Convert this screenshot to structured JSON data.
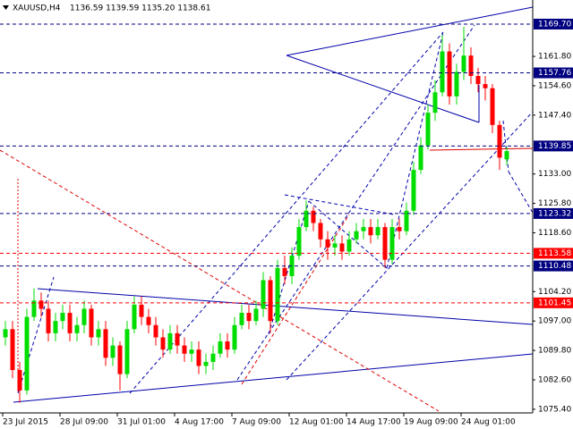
{
  "chart_data": {
    "type": "candlestick",
    "title": "XAUUSD,H4",
    "quote": "1136.59 1139.59 1135.20 1138.61",
    "up_color": "#00dd00",
    "down_color": "#ff0000",
    "ylim": [
      1074.5,
      1175.6
    ],
    "yticks": [
      {
        "value": 1075.4,
        "label": "1075.40"
      },
      {
        "value": 1082.6,
        "label": "1082.60"
      },
      {
        "value": 1089.8,
        "label": "1089.80"
      },
      {
        "value": 1097,
        "label": "1097.00"
      },
      {
        "value": 1104.2,
        "label": "1104.20"
      },
      {
        "value": 1118.6,
        "label": "1118.60"
      },
      {
        "value": 1125.8,
        "label": "1125.80"
      },
      {
        "value": 1133,
        "label": "1133.00"
      },
      {
        "value": 1147.4,
        "label": "1147.40"
      },
      {
        "value": 1154.6,
        "label": "1154.60"
      },
      {
        "value": 1161.8,
        "label": "1161.80"
      }
    ],
    "levels": [
      {
        "value": 1169.7,
        "label": "1169.70",
        "color": "#000080"
      },
      {
        "value": 1157.76,
        "label": "1157.76",
        "color": "#000080"
      },
      {
        "value": 1139.85,
        "label": "1139.85",
        "color": "#000080"
      },
      {
        "value": 1123.32,
        "label": "1123.32",
        "color": "#000080"
      },
      {
        "value": 1113.58,
        "label": "1113.58",
        "color": "#ff0000"
      },
      {
        "value": 1110.48,
        "label": "1110.48",
        "color": "#000080"
      },
      {
        "value": 1101.45,
        "label": "1101.45",
        "color": "#ff0000"
      }
    ],
    "xticks": [
      {
        "value": -0.375,
        "label": "23 Jul 2015"
      },
      {
        "value": 7.625,
        "label": "28 Jul 09:00"
      },
      {
        "value": 15.625,
        "label": "31 Jul 01:00"
      },
      {
        "value": 23.625,
        "label": "4 Aug 17:00"
      },
      {
        "value": 31.625,
        "label": "7 Aug 09:00"
      },
      {
        "value": 39.625,
        "label": "12 Aug 01:00"
      },
      {
        "value": 47.625,
        "label": "14 Aug 17:00"
      },
      {
        "value": 55.625,
        "label": "19 Aug 09:00"
      },
      {
        "value": 63.625,
        "label": "24 Aug 01:00"
      }
    ],
    "open": [
      1093,
      1095,
      1085,
      1080,
      1098,
      1102,
      1100,
      1094,
      1097,
      1099,
      1094,
      1096,
      1100,
      1093,
      1095,
      1088,
      1091,
      1084,
      1095,
      1101,
      1098,
      1096,
      1093,
      1090,
      1094,
      1091,
      1089,
      1090,
      1086,
      1087,
      1089,
      1092,
      1090,
      1096,
      1099,
      1097,
      1100,
      1107,
      1097,
      1110,
      1108,
      1113,
      1120,
      1124,
      1121,
      1117,
      1115,
      1116,
      1114,
      1117,
      1119,
      1120,
      1118,
      1120,
      1112,
      1120,
      1119,
      1124,
      1134,
      1140,
      1148,
      1153,
      1163,
      1152,
      1158,
      1162,
      1157,
      1155,
      1154,
      1145,
      1136.59
    ],
    "high": [
      1097,
      1097,
      1087,
      1100,
      1105,
      1104,
      1102,
      1099,
      1101,
      1101,
      1098,
      1102,
      1101,
      1097,
      1097,
      1093,
      1092,
      1097,
      1103,
      1103,
      1100,
      1098,
      1095,
      1096,
      1096,
      1093,
      1092,
      1092,
      1089,
      1091,
      1094,
      1094,
      1098,
      1101,
      1101,
      1102,
      1109,
      1108,
      1112,
      1113,
      1115,
      1122,
      1126.5,
      1125,
      1122,
      1119,
      1118,
      1118,
      1119,
      1121,
      1122,
      1122,
      1122,
      1121,
      1122,
      1122,
      1126,
      1136,
      1142,
      1150,
      1156,
      1167,
      1165,
      1160,
      1169,
      1164,
      1159,
      1157,
      1155,
      1146,
      1139.59
    ],
    "low": [
      1091,
      1083,
      1077,
      1079,
      1097,
      1098,
      1092,
      1092,
      1095,
      1092,
      1092,
      1094,
      1091,
      1091,
      1086,
      1086,
      1080,
      1083,
      1094,
      1096,
      1094,
      1091,
      1088,
      1089,
      1089,
      1087,
      1087,
      1084,
      1084,
      1085,
      1088,
      1088,
      1089,
      1095,
      1095,
      1096,
      1098,
      1094,
      1096,
      1106,
      1106,
      1112,
      1119,
      1119,
      1115,
      1112,
      1113,
      1112,
      1113,
      1116,
      1117,
      1116,
      1117,
      1110,
      1111,
      1117,
      1118,
      1123,
      1133,
      1139,
      1146,
      1152,
      1150,
      1150,
      1156,
      1155,
      1153,
      1151,
      1143,
      1134,
      1135.2
    ],
    "close": [
      1095,
      1085,
      1080,
      1098,
      1102,
      1100,
      1094,
      1097,
      1099,
      1094,
      1096,
      1100,
      1093,
      1095,
      1088,
      1091,
      1084,
      1095,
      1101,
      1098,
      1096,
      1093,
      1090,
      1094,
      1091,
      1089,
      1090,
      1086,
      1087,
      1089,
      1092,
      1090,
      1096,
      1099,
      1097,
      1100,
      1107,
      1097,
      1110,
      1108,
      1113,
      1120,
      1124,
      1121,
      1117,
      1115,
      1116,
      1114,
      1117,
      1119,
      1120,
      1118,
      1120,
      1112,
      1120,
      1119,
      1124,
      1134,
      1140,
      1148,
      1153,
      1163,
      1152,
      1158,
      1162,
      1157,
      1155,
      1154,
      1145,
      1137,
      1138.61
    ]
  }
}
